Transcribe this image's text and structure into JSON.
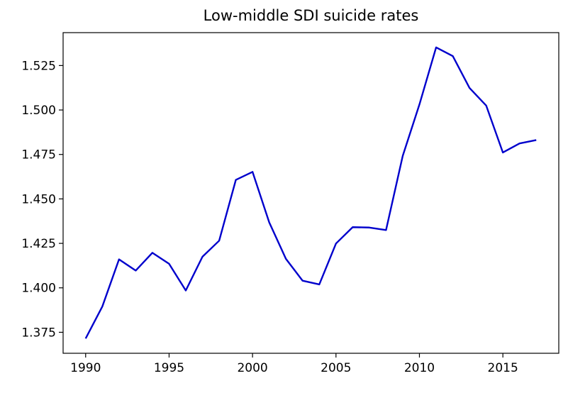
{
  "chart_data": {
    "type": "line",
    "title": "Low-middle SDI suicide rates",
    "xlabel": "",
    "ylabel": "",
    "x": [
      1990,
      1991,
      1992,
      1993,
      1994,
      1995,
      1996,
      1997,
      1998,
      1999,
      2000,
      2001,
      2002,
      2003,
      2004,
      2005,
      2006,
      2007,
      2008,
      2009,
      2010,
      2011,
      2012,
      2013,
      2014,
      2015,
      2016,
      2017
    ],
    "series": [
      {
        "color": "#0000cc",
        "values": [
          1.3715,
          1.3895,
          1.416,
          1.4097,
          1.4197,
          1.4135,
          1.3985,
          1.4175,
          1.4265,
          1.4607,
          1.4652,
          1.4368,
          1.4163,
          1.404,
          1.4019,
          1.4249,
          1.4341,
          1.4339,
          1.4325,
          1.4742,
          1.5031,
          1.5352,
          1.5303,
          1.5124,
          1.5025,
          1.4761,
          1.4812,
          1.4831
        ]
      }
    ],
    "xlim": [
      1988.65,
      2018.35
    ],
    "ylim": [
      1.3632,
      1.5435
    ],
    "xticks": [
      1990,
      1995,
      2000,
      2005,
      2010,
      2015
    ],
    "xtick_labels": [
      "1990",
      "1995",
      "2000",
      "2005",
      "2010",
      "2015"
    ],
    "yticks": [
      1.375,
      1.4,
      1.425,
      1.45,
      1.475,
      1.5,
      1.525
    ],
    "ytick_labels": [
      "1.375",
      "1.400",
      "1.425",
      "1.450",
      "1.475",
      "1.500",
      "1.525"
    ],
    "grid": false,
    "legend": "none"
  }
}
